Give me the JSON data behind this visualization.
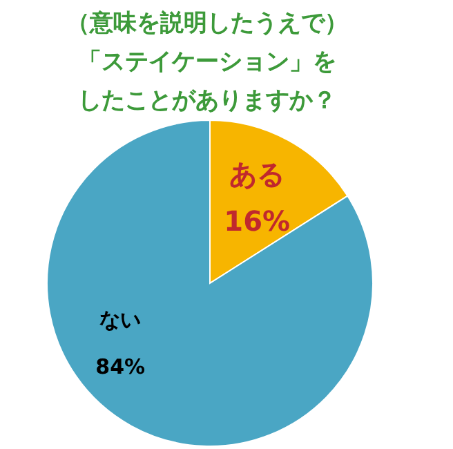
{
  "chart_data": {
    "type": "pie",
    "title": "（意味を説明したうえで）",
    "subtitle": "「ステイケーション」をしたことがありますか？",
    "categories": [
      "ある",
      "ない"
    ],
    "values": [
      16,
      84
    ],
    "value_labels": [
      "16%",
      "84%"
    ],
    "colors": [
      "#f7b500",
      "#4aa6c4"
    ]
  }
}
